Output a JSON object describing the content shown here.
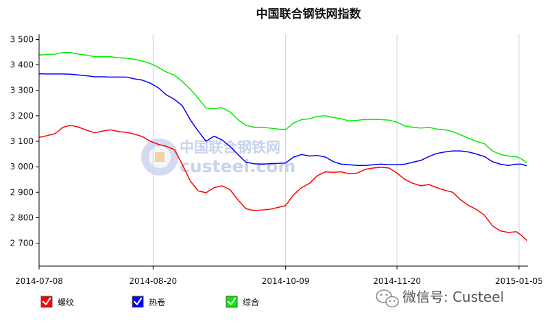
{
  "chart_data": {
    "type": "line",
    "title": "中国联合钢铁网指数",
    "xlabel": "",
    "ylabel": "",
    "x_start": "2014-07-08",
    "x_end": "2015-01-08",
    "x_ticks": [
      "2014-07-08",
      "2014-08-20",
      "2014-10-09",
      "2014-11-20",
      "2015-01-05"
    ],
    "y_ticks": [
      2700,
      2800,
      2900,
      3000,
      3100,
      3200,
      3300,
      3400,
      3500
    ],
    "y_tick_labels": [
      "2 700",
      "2 800",
      "2 900",
      "3 000",
      "3 100",
      "3 200",
      "3 300",
      "3 400",
      "3 500"
    ],
    "ylim": [
      2610,
      3520
    ],
    "grid": "vertical-at-x-ticks",
    "legend_position": "bottom-left",
    "series": [
      {
        "name": "螺纹",
        "color": "#ff0000",
        "points": [
          [
            "2014-07-08",
            3115
          ],
          [
            "2014-07-11",
            3122
          ],
          [
            "2014-07-14",
            3130
          ],
          [
            "2014-07-17",
            3155
          ],
          [
            "2014-07-20",
            3163
          ],
          [
            "2014-07-23",
            3155
          ],
          [
            "2014-07-26",
            3143
          ],
          [
            "2014-07-29",
            3133
          ],
          [
            "2014-08-01",
            3140
          ],
          [
            "2014-08-04",
            3145
          ],
          [
            "2014-08-07",
            3138
          ],
          [
            "2014-08-10",
            3135
          ],
          [
            "2014-08-13",
            3128
          ],
          [
            "2014-08-16",
            3118
          ],
          [
            "2014-08-19",
            3100
          ],
          [
            "2014-08-22",
            3088
          ],
          [
            "2014-08-25",
            3080
          ],
          [
            "2014-08-28",
            3068
          ],
          [
            "2014-08-31",
            3010
          ],
          [
            "2014-09-03",
            2945
          ],
          [
            "2014-09-06",
            2905
          ],
          [
            "2014-09-09",
            2898
          ],
          [
            "2014-09-12",
            2918
          ],
          [
            "2014-09-15",
            2925
          ],
          [
            "2014-09-18",
            2910
          ],
          [
            "2014-09-21",
            2870
          ],
          [
            "2014-09-24",
            2835
          ],
          [
            "2014-09-27",
            2828
          ],
          [
            "2014-09-30",
            2830
          ],
          [
            "2014-10-03",
            2833
          ],
          [
            "2014-10-06",
            2840
          ],
          [
            "2014-10-09",
            2848
          ],
          [
            "2014-10-12",
            2890
          ],
          [
            "2014-10-15",
            2918
          ],
          [
            "2014-10-18",
            2935
          ],
          [
            "2014-10-21",
            2965
          ],
          [
            "2014-10-24",
            2980
          ],
          [
            "2014-10-27",
            2978
          ],
          [
            "2014-10-30",
            2980
          ],
          [
            "2014-11-02",
            2972
          ],
          [
            "2014-11-05",
            2975
          ],
          [
            "2014-11-08",
            2990
          ],
          [
            "2014-11-11",
            2995
          ],
          [
            "2014-11-14",
            2998
          ],
          [
            "2014-11-17",
            2995
          ],
          [
            "2014-11-20",
            2975
          ],
          [
            "2014-11-23",
            2950
          ],
          [
            "2014-11-26",
            2935
          ],
          [
            "2014-11-29",
            2925
          ],
          [
            "2014-12-02",
            2930
          ],
          [
            "2014-12-05",
            2918
          ],
          [
            "2014-12-08",
            2908
          ],
          [
            "2014-12-11",
            2900
          ],
          [
            "2014-12-14",
            2870
          ],
          [
            "2014-12-17",
            2848
          ],
          [
            "2014-12-20",
            2832
          ],
          [
            "2014-12-23",
            2810
          ],
          [
            "2014-12-26",
            2768
          ],
          [
            "2014-12-29",
            2748
          ],
          [
            "2015-01-01",
            2742
          ],
          [
            "2015-01-04",
            2745
          ],
          [
            "2015-01-06",
            2730
          ],
          [
            "2015-01-08",
            2710
          ]
        ]
      },
      {
        "name": "热卷",
        "color": "#0000ff",
        "points": [
          [
            "2014-07-08",
            3365
          ],
          [
            "2014-07-11",
            3364
          ],
          [
            "2014-07-14",
            3364
          ],
          [
            "2014-07-17",
            3364
          ],
          [
            "2014-07-20",
            3363
          ],
          [
            "2014-07-23",
            3360
          ],
          [
            "2014-07-26",
            3357
          ],
          [
            "2014-07-29",
            3353
          ],
          [
            "2014-08-01",
            3353
          ],
          [
            "2014-08-04",
            3352
          ],
          [
            "2014-08-07",
            3352
          ],
          [
            "2014-08-10",
            3352
          ],
          [
            "2014-08-13",
            3345
          ],
          [
            "2014-08-16",
            3340
          ],
          [
            "2014-08-19",
            3328
          ],
          [
            "2014-08-22",
            3310
          ],
          [
            "2014-08-25",
            3282
          ],
          [
            "2014-08-28",
            3265
          ],
          [
            "2014-08-31",
            3240
          ],
          [
            "2014-09-03",
            3185
          ],
          [
            "2014-09-06",
            3140
          ],
          [
            "2014-09-09",
            3100
          ],
          [
            "2014-09-12",
            3120
          ],
          [
            "2014-09-15",
            3105
          ],
          [
            "2014-09-18",
            3080
          ],
          [
            "2014-09-21",
            3048
          ],
          [
            "2014-09-24",
            3018
          ],
          [
            "2014-09-27",
            3012
          ],
          [
            "2014-09-30",
            3010
          ],
          [
            "2014-10-03",
            3012
          ],
          [
            "2014-10-06",
            3013
          ],
          [
            "2014-10-09",
            3015
          ],
          [
            "2014-10-12",
            3038
          ],
          [
            "2014-10-15",
            3048
          ],
          [
            "2014-10-18",
            3042
          ],
          [
            "2014-10-21",
            3044
          ],
          [
            "2014-10-24",
            3038
          ],
          [
            "2014-10-27",
            3020
          ],
          [
            "2014-10-30",
            3010
          ],
          [
            "2014-11-02",
            3008
          ],
          [
            "2014-11-05",
            3005
          ],
          [
            "2014-11-08",
            3005
          ],
          [
            "2014-11-11",
            3008
          ],
          [
            "2014-11-14",
            3010
          ],
          [
            "2014-11-17",
            3008
          ],
          [
            "2014-11-20",
            3008
          ],
          [
            "2014-11-23",
            3010
          ],
          [
            "2014-11-26",
            3018
          ],
          [
            "2014-11-29",
            3025
          ],
          [
            "2014-12-02",
            3040
          ],
          [
            "2014-12-05",
            3052
          ],
          [
            "2014-12-08",
            3058
          ],
          [
            "2014-12-11",
            3062
          ],
          [
            "2014-12-14",
            3062
          ],
          [
            "2014-12-17",
            3058
          ],
          [
            "2014-12-20",
            3050
          ],
          [
            "2014-12-23",
            3040
          ],
          [
            "2014-12-26",
            3020
          ],
          [
            "2014-12-29",
            3010
          ],
          [
            "2015-01-01",
            3005
          ],
          [
            "2015-01-04",
            3010
          ],
          [
            "2015-01-06",
            3010
          ],
          [
            "2015-01-08",
            3003
          ]
        ]
      },
      {
        "name": "综合",
        "color": "#00ee00",
        "points": [
          [
            "2014-07-08",
            3438
          ],
          [
            "2014-07-11",
            3441
          ],
          [
            "2014-07-14",
            3442
          ],
          [
            "2014-07-17",
            3448
          ],
          [
            "2014-07-20",
            3448
          ],
          [
            "2014-07-23",
            3442
          ],
          [
            "2014-07-26",
            3438
          ],
          [
            "2014-07-29",
            3432
          ],
          [
            "2014-08-01",
            3432
          ],
          [
            "2014-08-04",
            3432
          ],
          [
            "2014-08-07",
            3428
          ],
          [
            "2014-08-10",
            3426
          ],
          [
            "2014-08-13",
            3422
          ],
          [
            "2014-08-16",
            3415
          ],
          [
            "2014-08-19",
            3405
          ],
          [
            "2014-08-22",
            3390
          ],
          [
            "2014-08-25",
            3372
          ],
          [
            "2014-08-28",
            3360
          ],
          [
            "2014-08-31",
            3335
          ],
          [
            "2014-09-03",
            3305
          ],
          [
            "2014-09-06",
            3270
          ],
          [
            "2014-09-09",
            3230
          ],
          [
            "2014-09-12",
            3228
          ],
          [
            "2014-09-15",
            3232
          ],
          [
            "2014-09-18",
            3215
          ],
          [
            "2014-09-21",
            3185
          ],
          [
            "2014-09-24",
            3163
          ],
          [
            "2014-09-27",
            3155
          ],
          [
            "2014-09-30",
            3155
          ],
          [
            "2014-10-03",
            3152
          ],
          [
            "2014-10-06",
            3148
          ],
          [
            "2014-10-09",
            3146
          ],
          [
            "2014-10-12",
            3172
          ],
          [
            "2014-10-15",
            3185
          ],
          [
            "2014-10-18",
            3188
          ],
          [
            "2014-10-21",
            3198
          ],
          [
            "2014-10-24",
            3200
          ],
          [
            "2014-10-27",
            3193
          ],
          [
            "2014-10-30",
            3188
          ],
          [
            "2014-11-02",
            3180
          ],
          [
            "2014-11-05",
            3182
          ],
          [
            "2014-11-08",
            3186
          ],
          [
            "2014-11-11",
            3186
          ],
          [
            "2014-11-14",
            3185
          ],
          [
            "2014-11-17",
            3183
          ],
          [
            "2014-11-20",
            3175
          ],
          [
            "2014-11-23",
            3160
          ],
          [
            "2014-11-26",
            3155
          ],
          [
            "2014-11-29",
            3152
          ],
          [
            "2014-12-02",
            3155
          ],
          [
            "2014-12-05",
            3148
          ],
          [
            "2014-12-08",
            3145
          ],
          [
            "2014-12-11",
            3138
          ],
          [
            "2014-12-14",
            3125
          ],
          [
            "2014-12-17",
            3112
          ],
          [
            "2014-12-20",
            3100
          ],
          [
            "2014-12-23",
            3090
          ],
          [
            "2014-12-26",
            3062
          ],
          [
            "2014-12-29",
            3048
          ],
          [
            "2015-01-01",
            3042
          ],
          [
            "2015-01-04",
            3040
          ],
          [
            "2015-01-06",
            3030
          ],
          [
            "2015-01-08",
            3015
          ]
        ]
      }
    ]
  },
  "watermark": {
    "cn": "中国联合钢铁网",
    "en": "custeel.com"
  },
  "wechat_label": "微信号: Custeel"
}
